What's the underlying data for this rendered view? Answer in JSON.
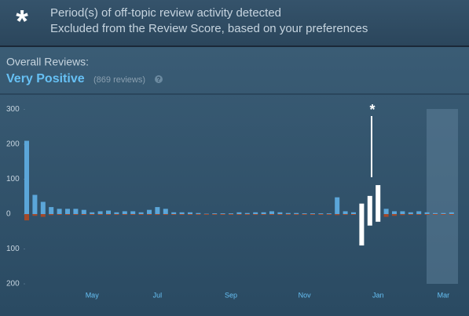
{
  "header": {
    "icon": "*",
    "line1": "Period(s) of off-topic review activity detected",
    "line2": "Excluded from the Review Score, based on your preferences"
  },
  "summary": {
    "label": "Overall Reviews:",
    "rating": "Very Positive",
    "count": "(869 reviews)",
    "help": "?"
  },
  "chart_data": {
    "type": "bar",
    "annotation": "*",
    "categories": [
      null,
      null,
      null,
      null,
      null,
      null,
      null,
      null,
      "May",
      null,
      null,
      null,
      null,
      null,
      null,
      null,
      "Jul",
      null,
      null,
      null,
      null,
      null,
      null,
      null,
      null,
      "Sep",
      null,
      null,
      null,
      null,
      null,
      null,
      null,
      null,
      "Nov",
      null,
      null,
      null,
      null,
      null,
      null,
      null,
      null,
      "Jan",
      null,
      null,
      null,
      null,
      null,
      null,
      null,
      "Mar",
      null
    ],
    "series": [
      {
        "color": "#5ba6d9",
        "values": [
          210,
          55,
          35,
          20,
          15,
          15,
          15,
          12,
          5,
          8,
          10,
          5,
          8,
          8,
          5,
          12,
          20,
          15,
          5,
          5,
          5,
          3,
          1,
          2,
          2,
          2,
          5,
          3,
          5,
          5,
          8,
          5,
          3,
          3,
          2,
          2,
          2,
          2,
          48,
          8,
          5,
          null,
          null,
          null,
          15,
          8,
          8,
          5,
          8,
          5,
          3,
          3,
          5
        ]
      },
      {
        "color": "#a3492a",
        "values": [
          -18,
          -5,
          -8,
          -3,
          -2,
          -2,
          -1,
          -1,
          -1,
          -1,
          -1,
          -1,
          -1,
          -1,
          -1,
          -1,
          -2,
          -1,
          -1,
          -1,
          -1,
          -1,
          0,
          0,
          0,
          -1,
          -1,
          -1,
          -1,
          -1,
          -1,
          -1,
          0,
          0,
          0,
          0,
          0,
          0,
          -3,
          -1,
          -1,
          null,
          null,
          null,
          -8,
          -5,
          -3,
          -2,
          -2,
          -1,
          -1,
          -1,
          -1
        ]
      },
      {
        "color": "#ffffff",
        "values": [
          null,
          null,
          null,
          null,
          null,
          null,
          null,
          null,
          null,
          null,
          null,
          null,
          null,
          null,
          null,
          null,
          null,
          null,
          null,
          null,
          null,
          null,
          null,
          null,
          null,
          null,
          null,
          null,
          null,
          null,
          null,
          null,
          null,
          null,
          null,
          null,
          null,
          null,
          null,
          null,
          null,
          30,
          52,
          83,
          null,
          null,
          null,
          null,
          null,
          null,
          null,
          null,
          null
        ]
      },
      {
        "color": "#ffffff",
        "values": [
          null,
          null,
          null,
          null,
          null,
          null,
          null,
          null,
          null,
          null,
          null,
          null,
          null,
          null,
          null,
          null,
          null,
          null,
          null,
          null,
          null,
          null,
          null,
          null,
          null,
          null,
          null,
          null,
          null,
          null,
          null,
          null,
          null,
          null,
          null,
          null,
          null,
          null,
          null,
          null,
          null,
          -90,
          -33,
          -22,
          null,
          null,
          null,
          null,
          null,
          null,
          null,
          null,
          null
        ]
      }
    ],
    "ylim": [
      -200,
      300
    ],
    "yticks": [
      300,
      200,
      100,
      0,
      {
        "value": -100,
        "label": "100"
      },
      {
        "value": -200,
        "label": "200"
      }
    ]
  }
}
